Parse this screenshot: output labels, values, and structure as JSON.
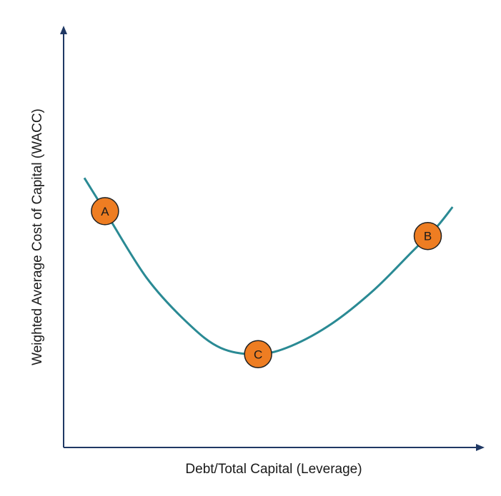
{
  "chart_data": {
    "type": "line",
    "title": "",
    "xlabel": "Debt/Total Capital (Leverage)",
    "ylabel": "Weighted Average Cost of Capital (WACC)",
    "xlim": [
      0,
      100
    ],
    "ylim": [
      0,
      100
    ],
    "grid": false,
    "series": [
      {
        "values": [
          {
            "x": 5,
            "y": 65
          },
          {
            "x": 10,
            "y": 57
          },
          {
            "x": 20,
            "y": 41
          },
          {
            "x": 30,
            "y": 30
          },
          {
            "x": 38,
            "y": 24
          },
          {
            "x": 47,
            "y": 22.5
          },
          {
            "x": 55,
            "y": 24.5
          },
          {
            "x": 65,
            "y": 30
          },
          {
            "x": 75,
            "y": 38
          },
          {
            "x": 84,
            "y": 47
          },
          {
            "x": 90,
            "y": 53
          },
          {
            "x": 94,
            "y": 58
          }
        ],
        "color": "#2a8a94"
      }
    ],
    "annotations": [
      {
        "label": "A",
        "x": 10,
        "y": 57
      },
      {
        "label": "C",
        "x": 47,
        "y": 22.5
      },
      {
        "label": "B",
        "x": 88,
        "y": 51
      }
    ],
    "colors": {
      "axis": "#1f3864",
      "curve": "#2a8a94",
      "marker_fill": "#ee7d22",
      "marker_stroke": "#222222"
    }
  }
}
